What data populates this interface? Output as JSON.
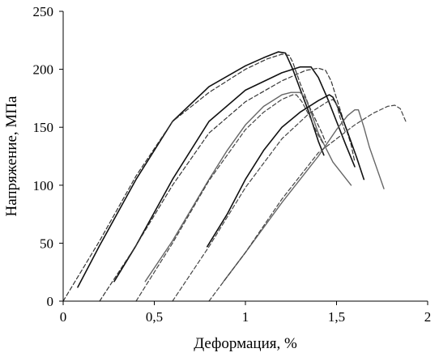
{
  "chart_data": {
    "type": "line",
    "title": "",
    "xlabel": "Деформация, %",
    "ylabel": "Напряжение, МПа",
    "xlim": [
      0,
      2
    ],
    "ylim": [
      0,
      250
    ],
    "x_ticks": [
      0,
      0.5,
      1,
      1.5,
      2
    ],
    "x_tick_labels": [
      "0",
      "0,5",
      "1",
      "1,5",
      "2"
    ],
    "y_ticks": [
      0,
      50,
      100,
      150,
      200,
      250
    ],
    "y_tick_labels": [
      "0",
      "50",
      "100",
      "150",
      "200",
      "250"
    ],
    "grid": false,
    "legend": false,
    "series": [
      {
        "style": "solid",
        "color": "#111111",
        "width": 1.6,
        "x": [
          0.08,
          0.2,
          0.4,
          0.6,
          0.8,
          1.0,
          1.1,
          1.18,
          1.22,
          1.26,
          1.3,
          1.35,
          1.4,
          1.43
        ],
        "y": [
          12,
          48,
          105,
          155,
          185,
          203,
          210,
          215,
          214,
          200,
          183,
          162,
          138,
          126
        ]
      },
      {
        "style": "dashed",
        "color": "#333333",
        "width": 1.2,
        "x": [
          0.0,
          0.2,
          0.4,
          0.6,
          0.8,
          1.0,
          1.12,
          1.2,
          1.24,
          1.26,
          1.3,
          1.35,
          1.42,
          1.44
        ],
        "y": [
          0,
          52,
          108,
          155,
          180,
          200,
          209,
          213,
          212,
          206,
          188,
          168,
          145,
          137
        ]
      },
      {
        "style": "solid",
        "color": "#111111",
        "width": 1.6,
        "x": [
          0.28,
          0.4,
          0.6,
          0.8,
          1.0,
          1.2,
          1.3,
          1.36,
          1.4,
          1.45,
          1.5,
          1.55,
          1.6
        ],
        "y": [
          17,
          48,
          105,
          155,
          182,
          197,
          202,
          202,
          193,
          175,
          155,
          135,
          116
        ]
      },
      {
        "style": "dashed",
        "color": "#333333",
        "width": 1.2,
        "x": [
          0.2,
          0.4,
          0.6,
          0.8,
          1.0,
          1.2,
          1.33,
          1.4,
          1.44,
          1.47,
          1.5,
          1.53,
          1.58,
          1.6
        ],
        "y": [
          0,
          48,
          100,
          145,
          172,
          190,
          199,
          201,
          199,
          190,
          175,
          160,
          135,
          120
        ]
      },
      {
        "style": "solid",
        "color": "#666666",
        "width": 1.4,
        "x": [
          0.45,
          0.6,
          0.8,
          0.9,
          1.0,
          1.1,
          1.2,
          1.25,
          1.3,
          1.33,
          1.36,
          1.4,
          1.48,
          1.58
        ],
        "y": [
          17,
          52,
          105,
          130,
          152,
          168,
          178,
          180,
          180,
          175,
          163,
          145,
          120,
          100
        ]
      },
      {
        "style": "dashed",
        "color": "#444444",
        "width": 1.2,
        "x": [
          0.4,
          0.6,
          0.8,
          1.0,
          1.1,
          1.2,
          1.26,
          1.28,
          1.31,
          1.35,
          1.4,
          1.43
        ],
        "y": [
          0,
          50,
          104,
          148,
          163,
          174,
          178,
          178,
          172,
          160,
          143,
          135
        ]
      },
      {
        "style": "solid",
        "color": "#111111",
        "width": 1.6,
        "x": [
          0.79,
          0.9,
          1.0,
          1.1,
          1.2,
          1.3,
          1.4,
          1.46,
          1.48,
          1.52,
          1.56,
          1.61,
          1.65
        ],
        "y": [
          47,
          75,
          105,
          130,
          150,
          163,
          173,
          178,
          176,
          163,
          146,
          124,
          105
        ]
      },
      {
        "style": "dashed",
        "color": "#444444",
        "width": 1.2,
        "x": [
          0.6,
          0.8,
          1.0,
          1.2,
          1.35,
          1.45,
          1.48,
          1.5,
          1.52,
          1.55
        ],
        "y": [
          0,
          47,
          98,
          140,
          162,
          172,
          174,
          170,
          158,
          145
        ]
      },
      {
        "style": "solid",
        "color": "#666666",
        "width": 1.4,
        "x": [
          0.88,
          1.0,
          1.2,
          1.4,
          1.5,
          1.56,
          1.6,
          1.62,
          1.65,
          1.68,
          1.72,
          1.76
        ],
        "y": [
          17,
          42,
          85,
          125,
          148,
          160,
          165,
          165,
          150,
          133,
          115,
          97
        ]
      },
      {
        "style": "dashed",
        "color": "#444444",
        "width": 1.2,
        "x": [
          0.8,
          1.0,
          1.2,
          1.4,
          1.6,
          1.7,
          1.78,
          1.82,
          1.85,
          1.88
        ],
        "y": [
          0,
          42,
          88,
          128,
          152,
          162,
          168,
          169,
          166,
          155
        ]
      }
    ]
  }
}
